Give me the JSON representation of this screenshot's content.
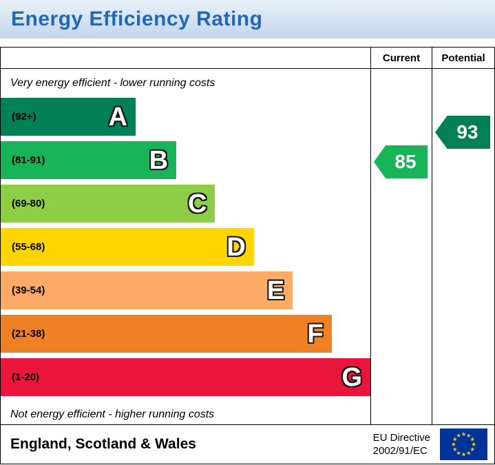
{
  "title": "Energy Efficiency Rating",
  "columns": {
    "current": "Current",
    "potential": "Potential"
  },
  "captions": {
    "top": "Very energy efficient - lower running costs",
    "bottom": "Not energy efficient - higher running costs"
  },
  "bands": [
    {
      "letter": "A",
      "range": "(92+)",
      "color": "#008054",
      "width_pct": 36.5
    },
    {
      "letter": "B",
      "range": "(81-91)",
      "color": "#19b459",
      "width_pct": 47.5
    },
    {
      "letter": "C",
      "range": "(69-80)",
      "color": "#8dce46",
      "width_pct": 58
    },
    {
      "letter": "D",
      "range": "(55-68)",
      "color": "#ffd500",
      "width_pct": 68.5
    },
    {
      "letter": "E",
      "range": "(39-54)",
      "color": "#fcaa65",
      "width_pct": 79
    },
    {
      "letter": "F",
      "range": "(21-38)",
      "color": "#ef8023",
      "width_pct": 89.5
    },
    {
      "letter": "G",
      "range": "(1-20)",
      "color": "#e9153b",
      "width_pct": 100
    }
  ],
  "ratings": {
    "current": {
      "value": "85",
      "band": "B",
      "color": "#19b459"
    },
    "potential": {
      "value": "93",
      "band": "A",
      "color": "#008054"
    }
  },
  "footer": {
    "region": "England, Scotland & Wales",
    "directive_line1": "EU Directive",
    "directive_line2": "2002/91/EC",
    "flag_icon": "eu-flag-icon"
  },
  "colors": {
    "title_text": "#2268b2",
    "title_bar_bg": "#c3d5ea",
    "flag_blue": "#003399",
    "flag_stars": "#ffcc00"
  },
  "chart_data": {
    "type": "bar",
    "title": "Energy Efficiency Rating",
    "categories": [
      "A (92+)",
      "B (81-91)",
      "C (69-80)",
      "D (55-68)",
      "E (39-54)",
      "F (21-38)",
      "G (1-20)"
    ],
    "band_bar_widths_pct": [
      36.5,
      47.5,
      58,
      68.5,
      79,
      89.5,
      100
    ],
    "series": [
      {
        "name": "Current",
        "values": [
          85
        ],
        "band": "B"
      },
      {
        "name": "Potential",
        "values": [
          93
        ],
        "band": "A"
      }
    ],
    "annotations": [
      "Very energy efficient - lower running costs",
      "Not energy efficient - higher running costs"
    ],
    "legend_position": "top-right-columns",
    "footer": "England, Scotland & Wales — EU Directive 2002/91/EC"
  }
}
